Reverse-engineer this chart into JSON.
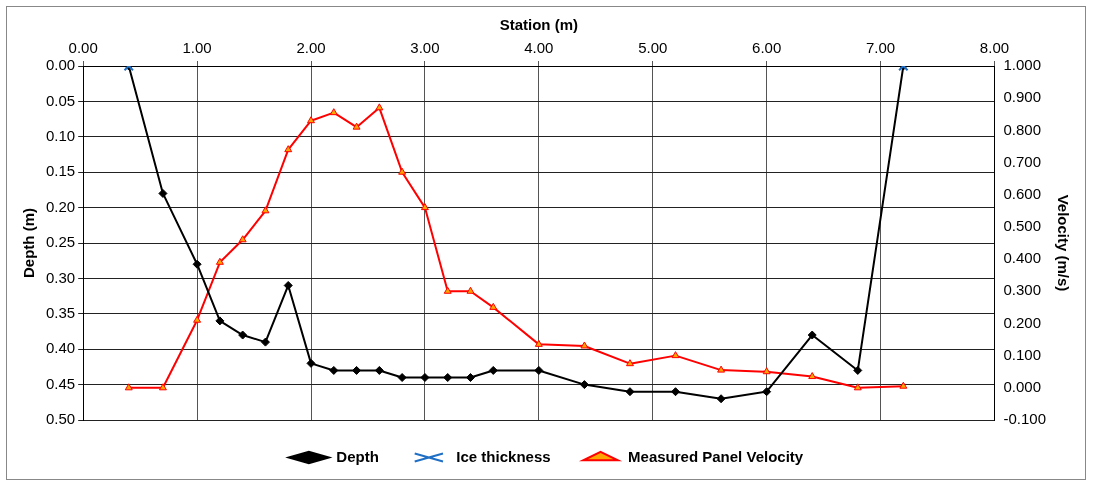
{
  "chart_data": {
    "type": "line",
    "xlabel": "Station (m)",
    "ylabel": "Depth (m)",
    "y2label": "Velocity (m/s)",
    "xlim": [
      0,
      8
    ],
    "xticks": [
      {
        "value": 0,
        "label": "0.00"
      },
      {
        "value": 1,
        "label": "1.00"
      },
      {
        "value": 2,
        "label": "2.00"
      },
      {
        "value": 3,
        "label": "3.00"
      },
      {
        "value": 4,
        "label": "4.00"
      },
      {
        "value": 5,
        "label": "5.00"
      },
      {
        "value": 6,
        "label": "6.00"
      },
      {
        "value": 7,
        "label": "7.00"
      },
      {
        "value": 8,
        "label": "8.00"
      }
    ],
    "ylim": [
      0.5,
      0
    ],
    "yticks": [
      {
        "value": 0,
        "label": "0.00"
      },
      {
        "value": 0.05,
        "label": "0.05"
      },
      {
        "value": 0.1,
        "label": "0.10"
      },
      {
        "value": 0.15,
        "label": "0.15"
      },
      {
        "value": 0.2,
        "label": "0.20"
      },
      {
        "value": 0.25,
        "label": "0.25"
      },
      {
        "value": 0.3,
        "label": "0.30"
      },
      {
        "value": 0.35,
        "label": "0.35"
      },
      {
        "value": 0.4,
        "label": "0.40"
      },
      {
        "value": 0.45,
        "label": "0.45"
      },
      {
        "value": 0.5,
        "label": "0.50"
      }
    ],
    "y2lim": [
      -0.1,
      1.0
    ],
    "y2ticks": [
      {
        "value": -0.1,
        "label": "-0.100"
      },
      {
        "value": 0,
        "label": "0.000"
      },
      {
        "value": 0.1,
        "label": "0.100"
      },
      {
        "value": 0.2,
        "label": "0.200"
      },
      {
        "value": 0.3,
        "label": "0.300"
      },
      {
        "value": 0.4,
        "label": "0.400"
      },
      {
        "value": 0.5,
        "label": "0.500"
      },
      {
        "value": 0.6,
        "label": "0.600"
      },
      {
        "value": 0.7,
        "label": "0.700"
      },
      {
        "value": 0.8,
        "label": "0.800"
      },
      {
        "value": 0.9,
        "label": "0.900"
      },
      {
        "value": 1.0,
        "label": "1.000"
      }
    ],
    "grid": true,
    "legend": "bottom",
    "series": [
      {
        "name": "Depth",
        "color": "#000000",
        "marker": "diamond",
        "x": [
          0.4,
          0.7,
          1.0,
          1.2,
          1.4,
          1.6,
          1.8,
          2.0,
          2.2,
          2.4,
          2.6,
          2.8,
          3.0,
          3.2,
          3.4,
          3.6,
          4.0,
          4.4,
          4.8,
          5.2,
          5.6,
          6.0,
          6.4,
          6.8,
          7.2
        ],
        "values": [
          0,
          0.18,
          0.28,
          0.36,
          0.38,
          0.39,
          0.31,
          0.42,
          0.43,
          0.43,
          0.43,
          0.44,
          0.44,
          0.44,
          0.44,
          0.43,
          0.43,
          0.45,
          0.46,
          0.46,
          0.47,
          0.46,
          0.38,
          0.43,
          0
        ]
      },
      {
        "name": "Ice thickness",
        "type": "scatter",
        "color": "#1f6fc5",
        "marker": "cross",
        "x": [
          0.4,
          7.2
        ],
        "values": [
          0,
          0
        ]
      },
      {
        "name": "Measured Panel Velocity",
        "color": "#ff0000",
        "marker": "triangle",
        "axis": "y2",
        "x": [
          0.4,
          0.7,
          1.0,
          1.2,
          1.4,
          1.6,
          1.8,
          2.0,
          2.2,
          2.4,
          2.6,
          2.8,
          3.0,
          3.2,
          3.4,
          3.6,
          4.0,
          4.4,
          4.8,
          5.2,
          5.6,
          6.0,
          6.4,
          6.8,
          7.2
        ],
        "values": [
          0,
          0,
          0.21,
          0.39,
          0.46,
          0.55,
          0.74,
          0.83,
          0.855,
          0.81,
          0.87,
          0.67,
          0.56,
          0.3,
          0.3,
          0.25,
          0.135,
          0.13,
          0.075,
          0.1,
          0.055,
          0.05,
          0.035,
          0,
          0.005
        ]
      }
    ]
  }
}
